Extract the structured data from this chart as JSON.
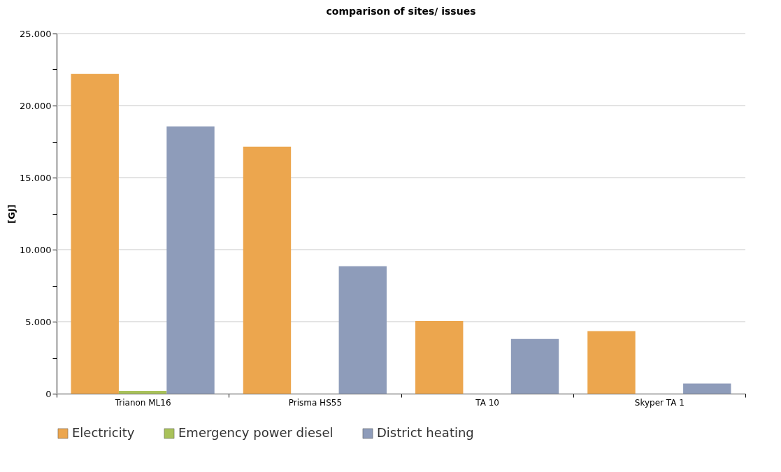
{
  "chart_data": {
    "type": "bar",
    "title": "comparison of sites/ issues",
    "ylabel": "[GJ]",
    "categories": [
      "Trianon ML16",
      "Prisma HS55",
      "TA 10",
      "Skyper TA 1"
    ],
    "series": [
      {
        "name": "Electricity",
        "color": "#eca64e",
        "values": [
          22200,
          17150,
          5050,
          4350
        ]
      },
      {
        "name": "Emergency power diesel",
        "color": "#a9c25a",
        "values": [
          200,
          0,
          0,
          0
        ]
      },
      {
        "name": "District heating",
        "color": "#8e9cba",
        "values": [
          18550,
          8850,
          3800,
          700
        ]
      }
    ],
    "ylim": [
      0,
      25000
    ],
    "yticks": [
      {
        "value": 0,
        "label": "0"
      },
      {
        "value": 2500,
        "label": null
      },
      {
        "value": 5000,
        "label": "5.000"
      },
      {
        "value": 7500,
        "label": null
      },
      {
        "value": 10000,
        "label": "10.000"
      },
      {
        "value": 12500,
        "label": null
      },
      {
        "value": 15000,
        "label": "15.000"
      },
      {
        "value": 17500,
        "label": null
      },
      {
        "value": 20000,
        "label": "20.000"
      },
      {
        "value": 22500,
        "label": null
      },
      {
        "value": 25000,
        "label": "25.000"
      }
    ],
    "grid": "y",
    "legend": "bottom left"
  }
}
